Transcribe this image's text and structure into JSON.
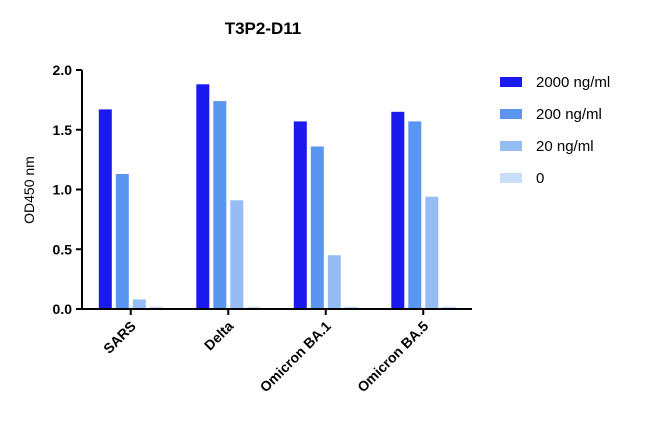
{
  "chart_data": {
    "type": "bar",
    "title": "T3P2-D11",
    "xlabel": "",
    "ylabel": "OD450 nm",
    "ylim": [
      0,
      2.0
    ],
    "yticks": [
      "0.0",
      "0.5",
      "1.0",
      "1.5",
      "2.0"
    ],
    "categories": [
      "SARS",
      "Delta",
      "Omicron BA.1",
      "Omicron BA.5"
    ],
    "series": [
      {
        "name": "2000 ng/ml",
        "color": "#1a1aee",
        "values": [
          1.67,
          1.88,
          1.57,
          1.65
        ]
      },
      {
        "name": "200 ng/ml",
        "color": "#5a96f0",
        "values": [
          1.13,
          1.74,
          1.36,
          1.57
        ]
      },
      {
        "name": "20 ng/ml",
        "color": "#95bdf4",
        "values": [
          0.08,
          0.91,
          0.45,
          0.94
        ]
      },
      {
        "name": "0",
        "color": "#c9dcf8",
        "values": [
          0.02,
          0.02,
          0.02,
          0.02
        ]
      }
    ],
    "grid": false,
    "legend": "right"
  }
}
